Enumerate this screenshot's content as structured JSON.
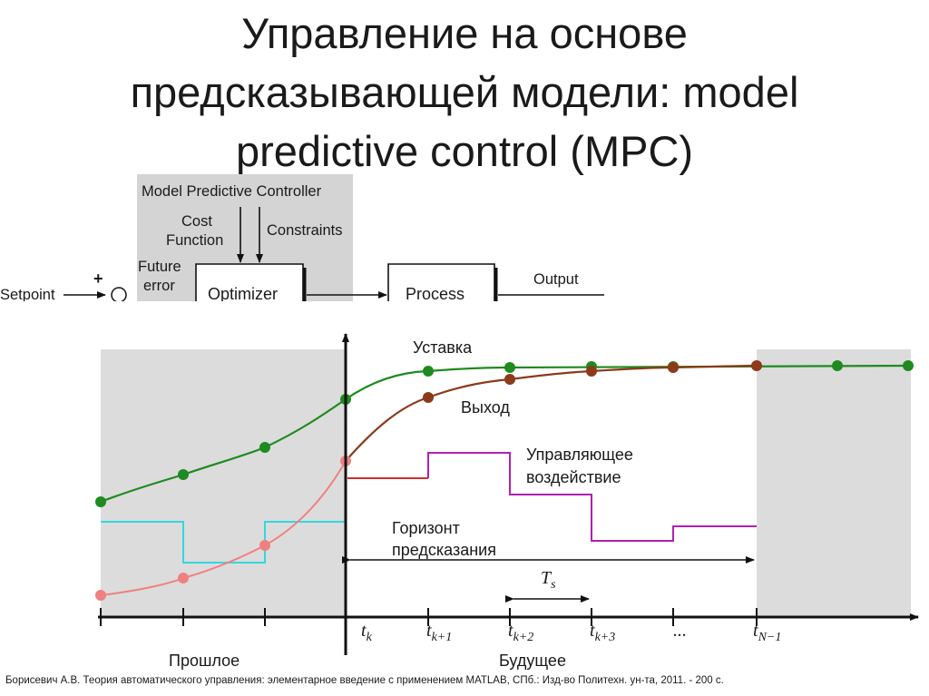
{
  "slide": {
    "title_lines": [
      "Управление на основе",
      "предсказывающей модели: model",
      "predictive control (MPC)"
    ],
    "caption": "Борисевич А.В. Теория автоматического управления: элементарное введение с применением MATLAB, СПб.: Изд-во Политехн. ун-та, 2011. - 200 с."
  },
  "block_diagram": {
    "controller_label": "Model Predictive Controller",
    "cost_label_1": "Cost",
    "cost_label_2": "Function",
    "constraints_label": "Constraints",
    "future_label_1": "Future",
    "future_label_2": "error",
    "plus_sign": "+",
    "setpoint_label": "Setpoint",
    "optimizer_label": "Optimizer",
    "process_label": "Process",
    "output_label": "Output"
  },
  "plot": {
    "setpoint_label": "Уставка",
    "output_label": "Выход",
    "control_label_1": "Управляющее",
    "control_label_2": "воздействие",
    "horizon_label_1": "Горизонт",
    "horizon_label_2": "предсказания",
    "ts_main": "T",
    "ts_sub": "s",
    "past_label": "Прошлое",
    "future_label": "Будущее",
    "ticks": [
      {
        "main": "t",
        "sub": "k"
      },
      {
        "main": "t",
        "sub": "k+1"
      },
      {
        "main": "t",
        "sub": "k+2"
      },
      {
        "main": "t",
        "sub": "k+3"
      },
      {
        "main": "...",
        "sub": ""
      },
      {
        "main": "t",
        "sub": "N−1"
      }
    ],
    "colors": {
      "setpoint": "#1f8a1f",
      "output": "#8b3a1a",
      "past_output": "#f08080",
      "control_future": "#b020b0",
      "control_first": "#d03030",
      "control_past": "#30d8e0",
      "shade": "#dcdcdc"
    }
  }
}
